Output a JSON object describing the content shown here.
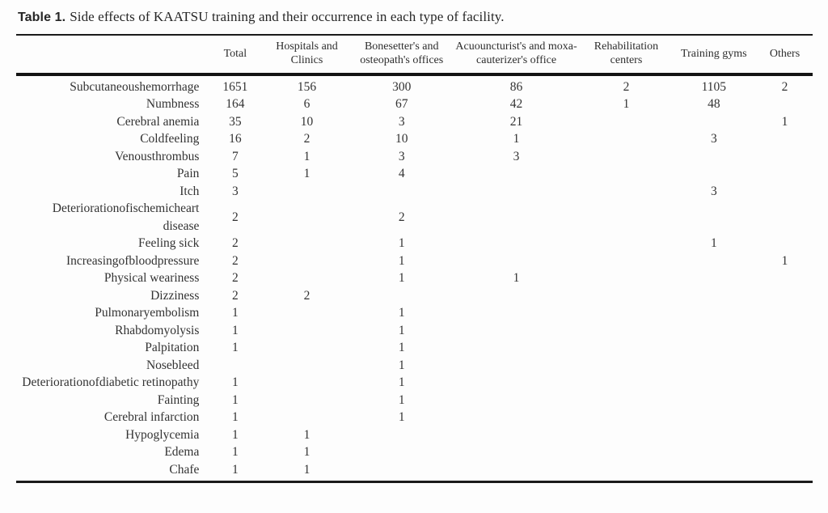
{
  "caption": {
    "label": "Table 1.",
    "text": "Side effects of KAATSU training and their occurrence in each type of facility."
  },
  "table": {
    "columns": [
      "",
      "Total",
      "Hospitals and Clinics",
      "Bonesetter's and osteopath's offices",
      "Acuouncturist's and moxa-cauterizer's office",
      "Rehabilitation centers",
      "Training gyms",
      "Others"
    ],
    "rows": [
      {
        "label": "Subcutaneoushemorrhage",
        "values": [
          "1651",
          "156",
          "300",
          "86",
          "2",
          "1105",
          "2"
        ]
      },
      {
        "label": "Numbness",
        "values": [
          "164",
          "6",
          "67",
          "42",
          "1",
          "48",
          ""
        ]
      },
      {
        "label": "Cerebral anemia",
        "values": [
          "35",
          "10",
          "3",
          "21",
          "",
          "",
          "1"
        ]
      },
      {
        "label": "Coldfeeling",
        "values": [
          "16",
          "2",
          "10",
          "1",
          "",
          "3",
          ""
        ]
      },
      {
        "label": "Venousthrombus",
        "values": [
          "7",
          "1",
          "3",
          "3",
          "",
          "",
          ""
        ]
      },
      {
        "label": "Pain",
        "values": [
          "5",
          "1",
          "4",
          "",
          "",
          "",
          ""
        ]
      },
      {
        "label": "Itch",
        "values": [
          "3",
          "",
          "",
          "",
          "",
          "3",
          ""
        ]
      },
      {
        "label": "Deteriorationofischemicheart disease",
        "values": [
          "2",
          "",
          "2",
          "",
          "",
          "",
          ""
        ]
      },
      {
        "label": "Feeling sick",
        "values": [
          "2",
          "",
          "1",
          "",
          "",
          "1",
          ""
        ]
      },
      {
        "label": "Increasingofbloodpressure",
        "values": [
          "2",
          "",
          "1",
          "",
          "",
          "",
          "1"
        ]
      },
      {
        "label": "Physical weariness",
        "values": [
          "2",
          "",
          "1",
          "1",
          "",
          "",
          ""
        ]
      },
      {
        "label": "Dizziness",
        "values": [
          "2",
          "2",
          "",
          "",
          "",
          "",
          ""
        ]
      },
      {
        "label": "Pulmonaryembolism",
        "values": [
          "1",
          "",
          "1",
          "",
          "",
          "",
          ""
        ]
      },
      {
        "label": "Rhabdomyolysis",
        "values": [
          "1",
          "",
          "1",
          "",
          "",
          "",
          ""
        ]
      },
      {
        "label": "Palpitation",
        "values": [
          "1",
          "",
          "1",
          "",
          "",
          "",
          ""
        ]
      },
      {
        "label": "Nosebleed",
        "values": [
          "",
          "",
          "1",
          "",
          "",
          "",
          ""
        ]
      },
      {
        "label": "Deteriorationofdiabetic retinopathy",
        "values": [
          "1",
          "",
          "1",
          "",
          "",
          "",
          ""
        ]
      },
      {
        "label": "Fainting",
        "values": [
          "1",
          "",
          "1",
          "",
          "",
          "",
          ""
        ]
      },
      {
        "label": "Cerebral infarction",
        "values": [
          "1",
          "",
          "1",
          "",
          "",
          "",
          ""
        ]
      },
      {
        "label": "Hypoglycemia",
        "values": [
          "1",
          "1",
          "",
          "",
          "",
          "",
          ""
        ]
      },
      {
        "label": "Edema",
        "values": [
          "1",
          "1",
          "",
          "",
          "",
          "",
          ""
        ]
      },
      {
        "label": "Chafe",
        "values": [
          "1",
          "1",
          "",
          "",
          "",
          "",
          ""
        ]
      }
    ]
  },
  "colors": {
    "rule": "#1b1b1b",
    "text": "#333333",
    "background": "#fdfdfd"
  }
}
